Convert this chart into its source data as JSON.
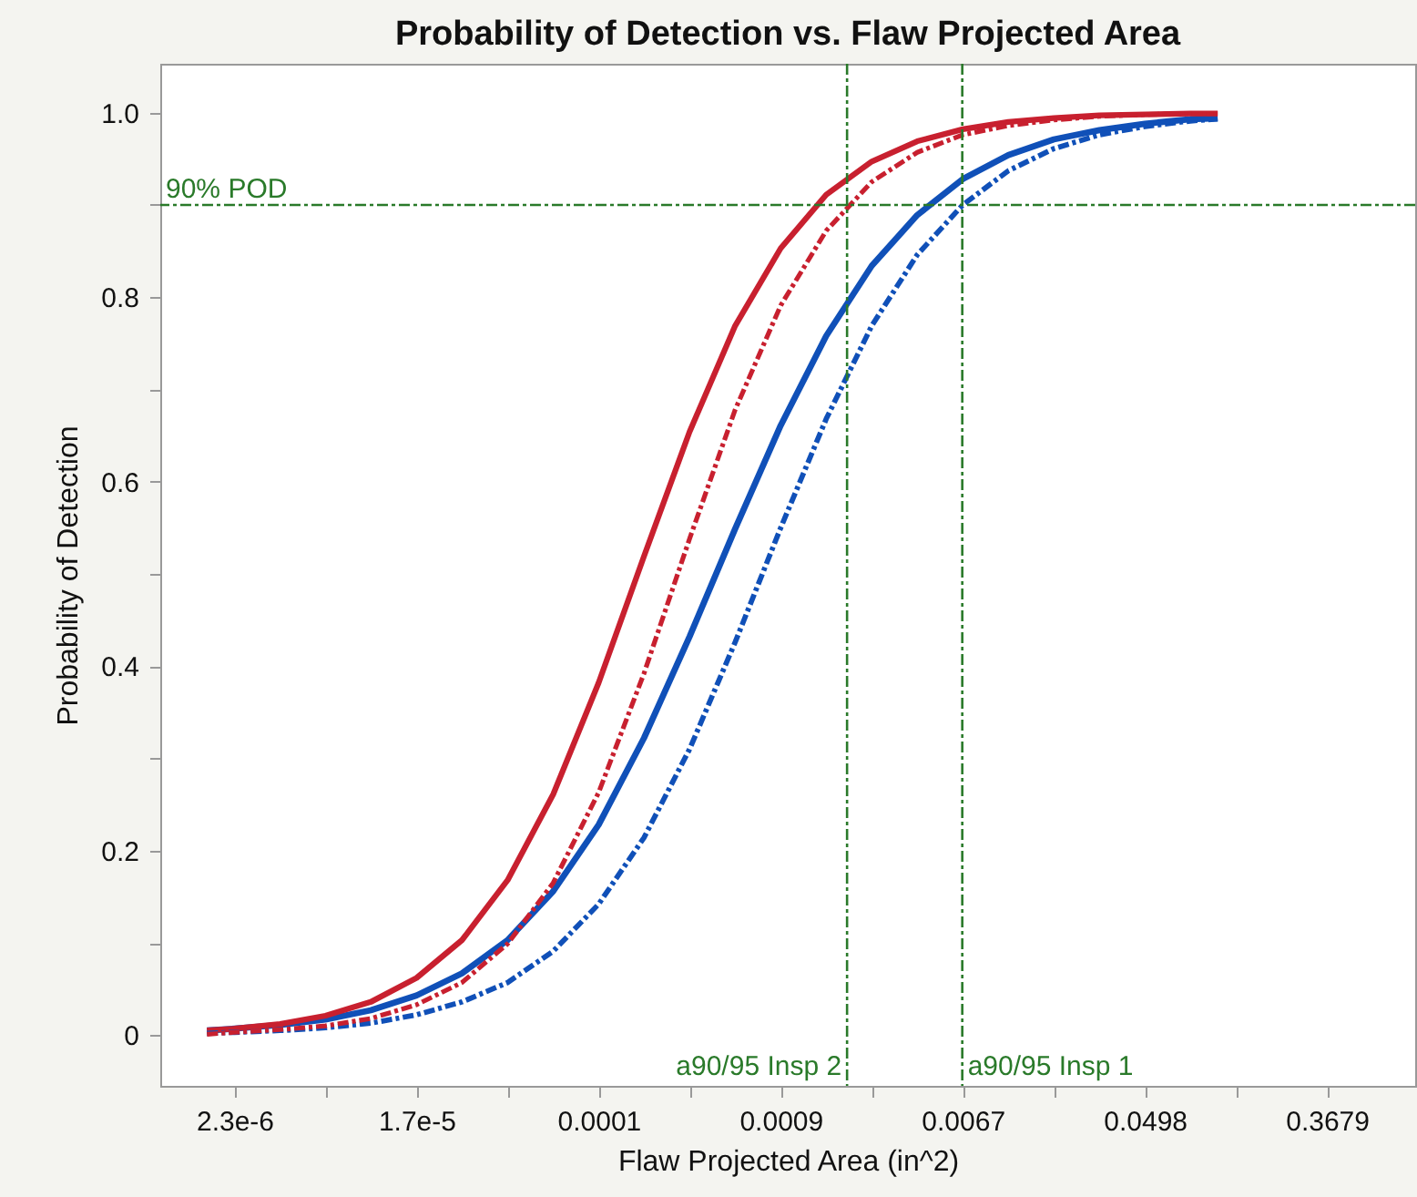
{
  "chart_data": {
    "type": "line",
    "title": "Probability of Detection vs. Flaw Projected Area",
    "xlabel": "Flaw Projected Area (in^2)",
    "ylabel": "Probability of Detection",
    "x": [
      1.67e-06,
      2.26e-06,
      3.73e-06,
      6.14e-06,
      1.01e-05,
      1.67e-05,
      2.75e-05,
      4.54e-05,
      7.49e-05,
      0.0001234,
      0.000203,
      0.000335,
      0.000553,
      0.000912,
      0.001503,
      0.002479,
      0.004087,
      0.006738,
      0.01111,
      0.01832,
      0.0302,
      0.04979,
      0.0821,
      0.1108
    ],
    "series": [
      {
        "color": "#c8202f",
        "line_style": "solid",
        "values": [
          0.005,
          0.007,
          0.012,
          0.021,
          0.036,
          0.062,
          0.103,
          0.168,
          0.261,
          0.382,
          0.519,
          0.654,
          0.769,
          0.853,
          0.911,
          0.947,
          0.969,
          0.982,
          0.99,
          0.994,
          0.997,
          0.998,
          0.999,
          0.999
        ]
      },
      {
        "color": "#c8202f",
        "line_style": "dashed",
        "values": [
          0.001,
          0.003,
          0.006,
          0.01,
          0.018,
          0.033,
          0.057,
          0.099,
          0.165,
          0.263,
          0.392,
          0.538,
          0.678,
          0.791,
          0.872,
          0.925,
          0.957,
          0.976,
          0.986,
          0.992,
          0.996,
          0.998,
          0.999,
          0.999
        ]
      },
      {
        "color": "#1050b8",
        "line_style": "solid",
        "values": [
          0.005,
          0.007,
          0.011,
          0.017,
          0.027,
          0.043,
          0.067,
          0.103,
          0.156,
          0.228,
          0.322,
          0.432,
          0.549,
          0.661,
          0.758,
          0.834,
          0.889,
          0.928,
          0.954,
          0.971,
          0.981,
          0.988,
          0.993,
          0.994
        ]
      },
      {
        "color": "#1050b8",
        "line_style": "dashed",
        "values": [
          0.002,
          0.003,
          0.005,
          0.008,
          0.013,
          0.022,
          0.036,
          0.057,
          0.091,
          0.142,
          0.214,
          0.31,
          0.426,
          0.55,
          0.668,
          0.769,
          0.846,
          0.9,
          0.937,
          0.961,
          0.976,
          0.985,
          0.991,
          0.993
        ]
      }
    ],
    "log": "x",
    "xlim": [
      1e-06,
      0.97
    ],
    "ylim": [
      -0.055,
      1.053
    ],
    "xticks": [
      {
        "value": 2.26e-06,
        "label": "2.3e-6"
      },
      {
        "value": 6.14e-06,
        "label": null
      },
      {
        "value": 1.67e-05,
        "label": "1.7e-5"
      },
      {
        "value": 4.54e-05,
        "label": null
      },
      {
        "value": 0.0001234,
        "label": "0.0001"
      },
      {
        "value": 0.000335,
        "label": null
      },
      {
        "value": 0.000912,
        "label": "0.0009"
      },
      {
        "value": 0.002479,
        "label": null
      },
      {
        "value": 0.006738,
        "label": "0.0067"
      },
      {
        "value": 0.01832,
        "label": null
      },
      {
        "value": 0.04979,
        "label": "0.0498"
      },
      {
        "value": 0.1353,
        "label": null
      },
      {
        "value": 0.3679,
        "label": "0.3679"
      }
    ],
    "yticks": [
      0,
      {
        "value": 0.1,
        "label": null
      },
      0.2,
      {
        "value": 0.3,
        "label": null
      },
      0.4,
      {
        "value": 0.5,
        "label": null
      },
      0.6,
      {
        "value": 0.7,
        "label": null
      },
      0.8,
      {
        "value": 0.9,
        "label": null
      },
      {
        "value": 1,
        "label": "1.0"
      }
    ],
    "grid": false,
    "marker": "none",
    "ref_lines": [
      {
        "axis": "y",
        "value": 0.9,
        "label": "90% POD",
        "color": "#2a7a2a",
        "line_style": "dashed"
      },
      {
        "axis": "x",
        "value": 0.00189,
        "label": "a90/95 Insp 2",
        "color": "#2a7a2a",
        "line_style": "dashed"
      },
      {
        "axis": "x",
        "value": 0.0067,
        "label": "a90/95 Insp 1",
        "color": "#2a7a2a",
        "line_style": "dashed"
      }
    ]
  }
}
